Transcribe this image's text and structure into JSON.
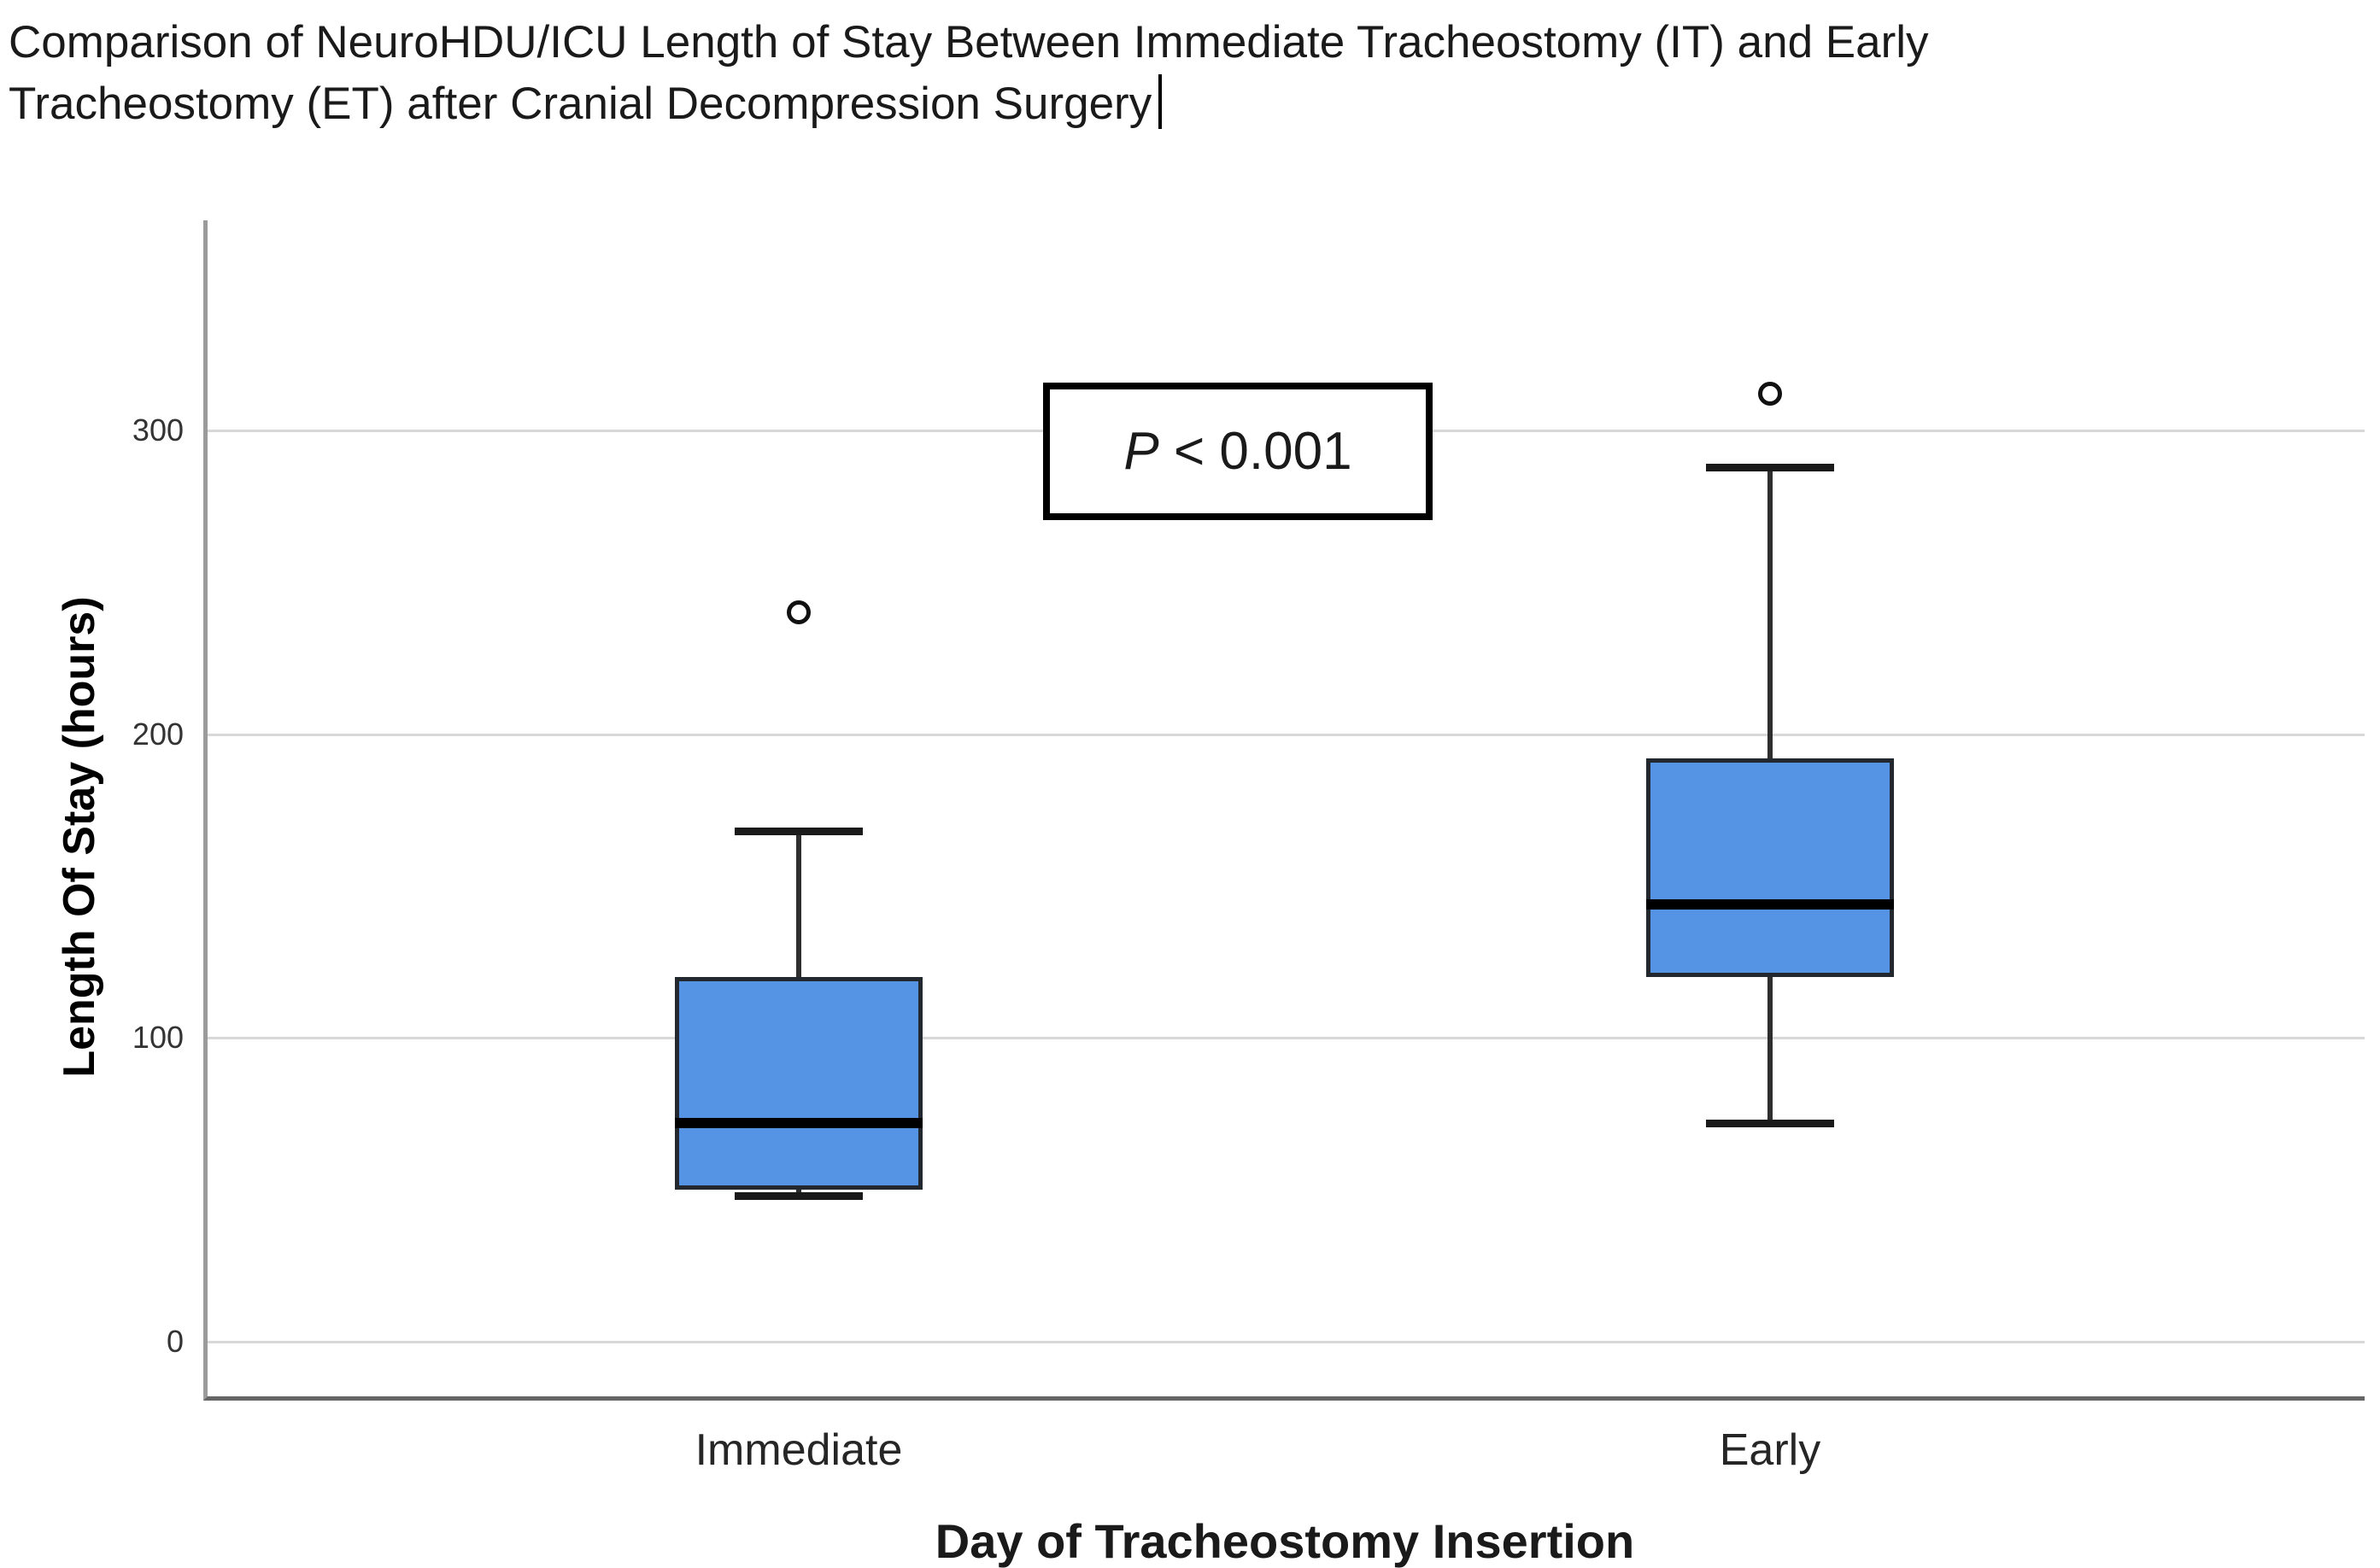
{
  "figure": {
    "title_line1": "Comparison of NeuroHDU/ICU Length of Stay Between Immediate Tracheostomy (IT) and Early",
    "title_line2": "Tracheostomy (ET) after Cranial Decompression Surgery"
  },
  "annotation": {
    "italic_part": "P",
    "rest_part": " < 0.001"
  },
  "chart_data": {
    "type": "boxplot",
    "title": "Comparison of NeuroHDU/ICU Length of Stay Between Immediate Tracheostomy (IT) and Early Tracheostomy (ET) after Cranial Decompression Surgery",
    "xlabel": "Day of Tracheostomy Insertion",
    "ylabel": "Length Of Stay (hours)",
    "ylim": [
      0,
      370
    ],
    "yticks": [
      0,
      100,
      200,
      300
    ],
    "grid": "horizontal",
    "legend": "none",
    "annotation": "P < 0.001",
    "categories": [
      "Immediate",
      "Early"
    ],
    "series": [
      {
        "name": "Immediate Tracheostomy (IT)",
        "category": "Immediate",
        "whisker_low": 48,
        "q1": 50,
        "median": 72,
        "q3": 120,
        "whisker_high": 168,
        "outliers": [
          240
        ]
      },
      {
        "name": "Early Tracheostomy (ET)",
        "category": "Early",
        "whisker_low": 72,
        "q1": 120,
        "median": 144,
        "q3": 192,
        "whisker_high": 288,
        "outliers": [
          312
        ]
      }
    ],
    "colors": {
      "box_fill": "#5593E4",
      "box_border": "#23272E",
      "median": "#000000",
      "whisker": "#2E2E2E",
      "gridline": "#D8D8D8",
      "y_axis_line": "#9B9B9B",
      "x_axis_line": "#666666",
      "tick_text": "#333333",
      "label_text": "#262626",
      "title_text": "#1A1A1A"
    }
  }
}
